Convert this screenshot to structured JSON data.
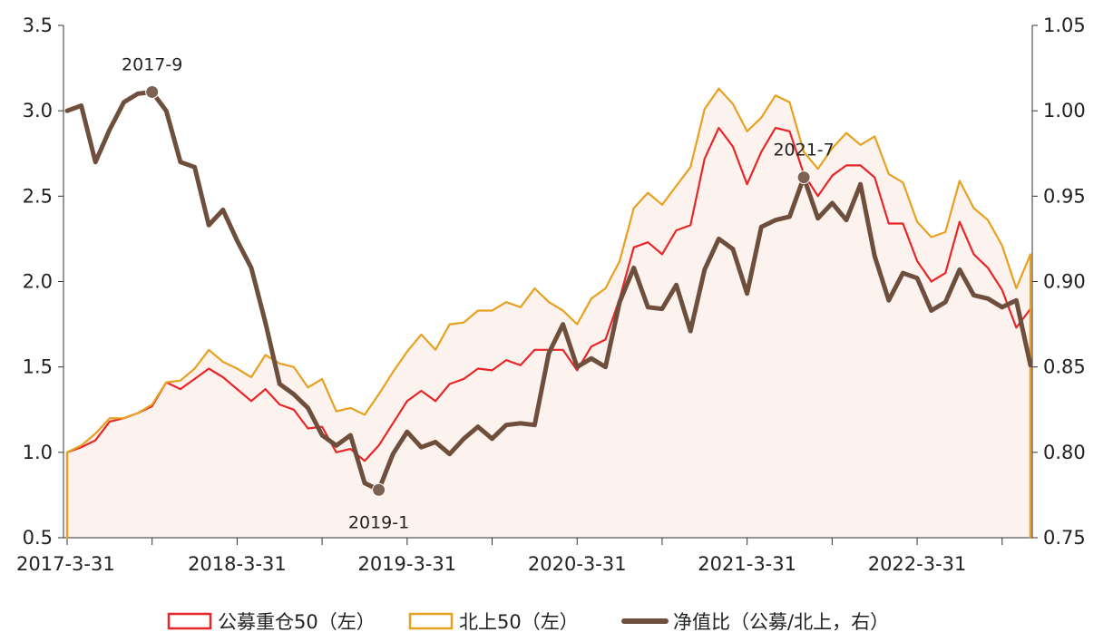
{
  "chart_data": {
    "type": "line",
    "title": "",
    "xlabel": "",
    "ylabel": "",
    "x_tick_labels": [
      "2017-3-31",
      "2018-3-31",
      "2019-3-31",
      "2020-3-31",
      "2021-3-31",
      "2022-3-31"
    ],
    "x_tick_index": [
      0,
      12,
      24,
      36,
      48,
      60
    ],
    "ylim_left": [
      0.5,
      3.5
    ],
    "yticks_left": [
      "0.5",
      "1.0",
      "1.5",
      "2.0",
      "2.5",
      "3.0",
      "3.5"
    ],
    "ylim_right": [
      0.75,
      1.05
    ],
    "yticks_right": [
      "0.75",
      "0.80",
      "0.85",
      "0.90",
      "0.95",
      "1.00",
      "1.05"
    ],
    "grid": false,
    "legend_position": "bottom",
    "series": [
      {
        "name": "公募重仓50（左）",
        "axis": "left",
        "color": "#e8262a",
        "values": [
          1.0,
          1.03,
          1.07,
          1.18,
          1.2,
          1.23,
          1.27,
          1.41,
          1.37,
          1.43,
          1.49,
          1.44,
          1.37,
          1.3,
          1.37,
          1.28,
          1.25,
          1.14,
          1.15,
          1.0,
          1.02,
          0.95,
          1.04,
          1.17,
          1.3,
          1.36,
          1.3,
          1.4,
          1.43,
          1.49,
          1.48,
          1.54,
          1.51,
          1.6,
          1.6,
          1.6,
          1.48,
          1.62,
          1.66,
          1.9,
          2.2,
          2.23,
          2.16,
          2.3,
          2.33,
          2.72,
          2.9,
          2.79,
          2.57,
          2.76,
          2.9,
          2.88,
          2.63,
          2.5,
          2.62,
          2.68,
          2.68,
          2.61,
          2.34,
          2.34,
          2.12,
          2.0,
          2.05,
          2.35,
          2.16,
          2.08,
          1.95,
          1.73,
          1.84
        ]
      },
      {
        "name": "北上50（左）",
        "axis": "left",
        "color": "#e8a020",
        "values": [
          1.0,
          1.04,
          1.11,
          1.2,
          1.2,
          1.23,
          1.28,
          1.41,
          1.42,
          1.49,
          1.6,
          1.53,
          1.49,
          1.44,
          1.57,
          1.52,
          1.5,
          1.38,
          1.43,
          1.24,
          1.26,
          1.22,
          1.34,
          1.47,
          1.59,
          1.69,
          1.6,
          1.75,
          1.76,
          1.83,
          1.83,
          1.88,
          1.85,
          1.96,
          1.88,
          1.83,
          1.75,
          1.9,
          1.96,
          2.12,
          2.43,
          2.52,
          2.45,
          2.56,
          2.67,
          3.01,
          3.13,
          3.04,
          2.88,
          2.96,
          3.09,
          3.05,
          2.76,
          2.66,
          2.78,
          2.87,
          2.8,
          2.85,
          2.63,
          2.58,
          2.35,
          2.26,
          2.29,
          2.59,
          2.43,
          2.36,
          2.21,
          1.96,
          2.16
        ]
      },
      {
        "name": "净值比（公募/北上，右）",
        "axis": "right",
        "color": "#6e4e3c",
        "values": [
          1.0,
          1.003,
          0.97,
          0.989,
          1.005,
          1.01,
          1.011,
          1.0,
          0.97,
          0.967,
          0.933,
          0.942,
          0.924,
          0.908,
          0.876,
          0.84,
          0.834,
          0.826,
          0.81,
          0.804,
          0.81,
          0.782,
          0.778,
          0.799,
          0.812,
          0.803,
          0.806,
          0.799,
          0.808,
          0.815,
          0.808,
          0.816,
          0.817,
          0.816,
          0.858,
          0.875,
          0.85,
          0.855,
          0.85,
          0.888,
          0.908,
          0.885,
          0.884,
          0.898,
          0.871,
          0.907,
          0.925,
          0.919,
          0.893,
          0.932,
          0.936,
          0.938,
          0.961,
          0.937,
          0.946,
          0.936,
          0.957,
          0.915,
          0.889,
          0.905,
          0.902,
          0.883,
          0.888,
          0.907,
          0.892,
          0.89,
          0.885,
          0.889,
          0.851
        ]
      }
    ],
    "annotations": [
      {
        "label": "2017-9",
        "series": 2,
        "index": 6
      },
      {
        "label": "2019-1",
        "series": 2,
        "index": 22
      },
      {
        "label": "2021-7",
        "series": 2,
        "index": 52
      }
    ],
    "fill_under_series": 1,
    "fill_color": "#fdf3ee"
  }
}
